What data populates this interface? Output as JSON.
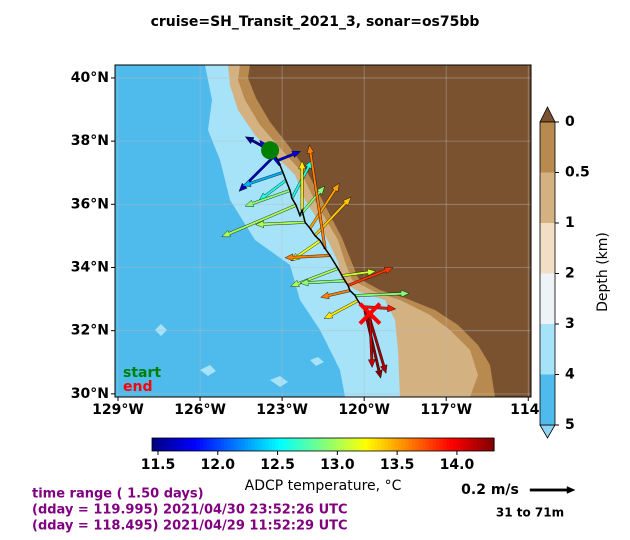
{
  "title": "cruise=SH_Transit_2021_3,   sonar=os75bb",
  "map": {
    "xlim": [
      -129.11,
      -113.9
    ],
    "ylim": [
      29.9,
      40.41
    ],
    "xticks": [
      {
        "value": -129,
        "label": "129°W"
      },
      {
        "value": -126,
        "label": "126°W"
      },
      {
        "value": -123,
        "label": "123°W"
      },
      {
        "value": -120,
        "label": "120°W"
      },
      {
        "value": -117,
        "label": "117°W"
      },
      {
        "value": -114,
        "label": "114°"
      }
    ],
    "yticks": [
      {
        "value": 40,
        "label": "40°N"
      },
      {
        "value": 38,
        "label": "38°N"
      },
      {
        "value": 36,
        "label": "36°N"
      },
      {
        "value": 34,
        "label": "34°N"
      },
      {
        "value": 32,
        "label": "32°N"
      },
      {
        "value": 30,
        "label": "30°N"
      }
    ],
    "start_label": "start",
    "end_label": "end",
    "start_color": "#008000",
    "end_color": "#ff0000"
  },
  "vectors": {
    "lon": [
      -123.44,
      -123.26,
      -123.15,
      -123.08,
      -122.97,
      -122.86,
      -122.71,
      -122.64,
      -122.49,
      -122.35,
      -122.27,
      -122.16,
      -121.98,
      -121.8,
      -121.61,
      -121.43,
      -121.25,
      -120.96,
      -120.81,
      -120.7,
      -120.59,
      -120.52,
      -120.33,
      -120.23,
      -120.08,
      -119.97,
      -119.86,
      -119.79
    ],
    "lat": [
      37.71,
      37.55,
      37.39,
      37.24,
      37.01,
      36.76,
      36.44,
      36.19,
      35.97,
      35.65,
      35.81,
      35.43,
      35.24,
      35.01,
      34.85,
      34.6,
      34.38,
      33.97,
      33.74,
      33.58,
      33.43,
      33.27,
      33.11,
      32.95,
      32.76,
      32.63,
      32.57,
      32.54
    ],
    "u": [
      -0.11,
      -0.16,
      0.1,
      -0.09,
      -0.18,
      -0.12,
      -0.2,
      0.09,
      -0.33,
      0.11,
      0.0,
      -0.22,
      0.13,
      0.16,
      -0.13,
      -0.07,
      -0.2,
      -0.21,
      0.15,
      -0.2,
      0.2,
      -0.13,
      0.24,
      -0.15,
      0.15,
      0.07,
      0.08,
      0.01
    ],
    "v": [
      0.06,
      -0.16,
      0.04,
      0.11,
      -0.06,
      -0.09,
      -0.07,
      0.17,
      -0.14,
      0.13,
      0.22,
      -0.01,
      0.2,
      0.17,
      -0.09,
      0.46,
      -0.01,
      -0.08,
      0.02,
      -0.01,
      0.08,
      -0.03,
      0.01,
      -0.08,
      -0.01,
      -0.3,
      -0.27,
      -0.24
    ],
    "temperature": [
      11.5,
      11.6,
      11.7,
      11.8,
      12.3,
      12.6,
      12.9,
      12.6,
      13.0,
      12.9,
      13.3,
      13.0,
      13.5,
      13.4,
      13.2,
      13.6,
      13.6,
      13.0,
      13.1,
      12.9,
      13.8,
      13.6,
      12.9,
      13.3,
      13.9,
      14.3,
      14.2,
      14.1
    ]
  },
  "scale_arrow": {
    "value": 0.2,
    "label": "0.2 m/s"
  },
  "depth_range": "31 to 71m",
  "temperature_colorbar": {
    "label": "ADCP temperature, °C",
    "clim": [
      11.45,
      14.31
    ],
    "ticks": [
      11.5,
      12.0,
      12.5,
      13.0,
      13.5,
      14.0
    ],
    "tick_labels": [
      "11.5",
      "12.0",
      "12.5",
      "13.0",
      "13.5",
      "14.0"
    ]
  },
  "depth_colorbar": {
    "label": "Depth (km)",
    "ticks": [
      0,
      0.5,
      1,
      2,
      3,
      4,
      5
    ],
    "colors": [
      "#b98a50",
      "#d4b181",
      "#f2ddc5",
      "#edf3f7",
      "#a6e2f8",
      "#4fbaec"
    ],
    "over_color": "#7a5230",
    "under_color": "#8fd6f5"
  },
  "time_info": [
    "time range ( 1.50 days)",
    "(dday = 119.995) 2021/04/30 23:52:26 UTC",
    "(dday = 118.495) 2021/04/29 11:52:29 UTC"
  ]
}
